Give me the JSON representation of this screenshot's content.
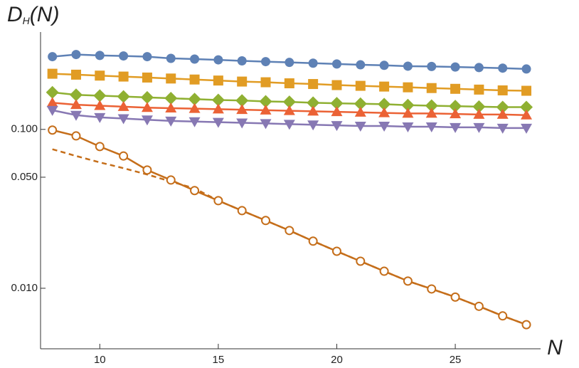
{
  "chart_data": {
    "type": "line",
    "y_scale": "log",
    "y_label": {
      "main": "D",
      "sub": "H",
      "args": "(N)"
    },
    "x_label": "N",
    "x": [
      8,
      9,
      10,
      11,
      12,
      13,
      14,
      15,
      16,
      17,
      18,
      19,
      20,
      21,
      22,
      23,
      24,
      25,
      26,
      27,
      28
    ],
    "xlim": [
      7.5,
      28.6
    ],
    "xticks": [
      10,
      15,
      20,
      25
    ],
    "ylim": [
      0.00416,
      0.41
    ],
    "yticks": [
      {
        "value": 0.01,
        "label": "0.010"
      },
      {
        "value": 0.05,
        "label": "0.050"
      },
      {
        "value": 0.1,
        "label": "0.100"
      }
    ],
    "series": [
      {
        "color": "#5e81b5",
        "marker": "circle",
        "values": [
          0.287,
          0.296,
          0.292,
          0.29,
          0.287,
          0.28,
          0.277,
          0.274,
          0.27,
          0.267,
          0.264,
          0.261,
          0.258,
          0.255,
          0.253,
          0.25,
          0.249,
          0.247,
          0.245,
          0.243,
          0.24
        ]
      },
      {
        "color": "#e19c24",
        "marker": "square",
        "values": [
          0.224,
          0.221,
          0.218,
          0.215,
          0.212,
          0.209,
          0.206,
          0.203,
          0.2,
          0.198,
          0.195,
          0.193,
          0.19,
          0.188,
          0.186,
          0.184,
          0.182,
          0.18,
          0.178,
          0.176,
          0.175
        ]
      },
      {
        "color": "#8fb032",
        "marker": "diamond",
        "values": [
          0.171,
          0.165,
          0.163,
          0.161,
          0.159,
          0.157,
          0.155,
          0.153,
          0.152,
          0.15,
          0.149,
          0.147,
          0.146,
          0.145,
          0.144,
          0.142,
          0.141,
          0.14,
          0.139,
          0.138,
          0.138
        ]
      },
      {
        "color": "#eb6235",
        "marker": "triangle-up",
        "values": [
          0.147,
          0.143,
          0.141,
          0.139,
          0.137,
          0.136,
          0.135,
          0.134,
          0.133,
          0.132,
          0.131,
          0.13,
          0.129,
          0.128,
          0.127,
          0.126,
          0.126,
          0.125,
          0.124,
          0.124,
          0.123
        ]
      },
      {
        "color": "#8778b3",
        "marker": "triangle-down",
        "values": [
          0.132,
          0.123,
          0.119,
          0.117,
          0.115,
          0.113,
          0.112,
          0.111,
          0.11,
          0.109,
          0.108,
          0.107,
          0.106,
          0.105,
          0.105,
          0.104,
          0.104,
          0.103,
          0.103,
          0.102,
          0.102
        ]
      },
      {
        "color": "#c56e1a",
        "marker": "none",
        "dashed": true,
        "values": [
          0.075,
          0.068,
          0.062,
          0.057,
          0.052,
          0.047,
          0.0425,
          0.0356,
          0.0308,
          0.0267,
          0.0231,
          0.0198,
          0.0171,
          0.0148,
          0.0128,
          0.0111,
          0.0099,
          0.0088,
          0.0077,
          0.0067,
          0.0059
        ]
      },
      {
        "color": "#c56e1a",
        "marker": "open-circle",
        "values": [
          0.099,
          0.091,
          0.078,
          0.068,
          0.0555,
          0.048,
          0.0412,
          0.0356,
          0.0308,
          0.0267,
          0.0231,
          0.0198,
          0.0171,
          0.0148,
          0.0128,
          0.0111,
          0.0099,
          0.0088,
          0.0077,
          0.0067,
          0.0059
        ]
      }
    ]
  }
}
